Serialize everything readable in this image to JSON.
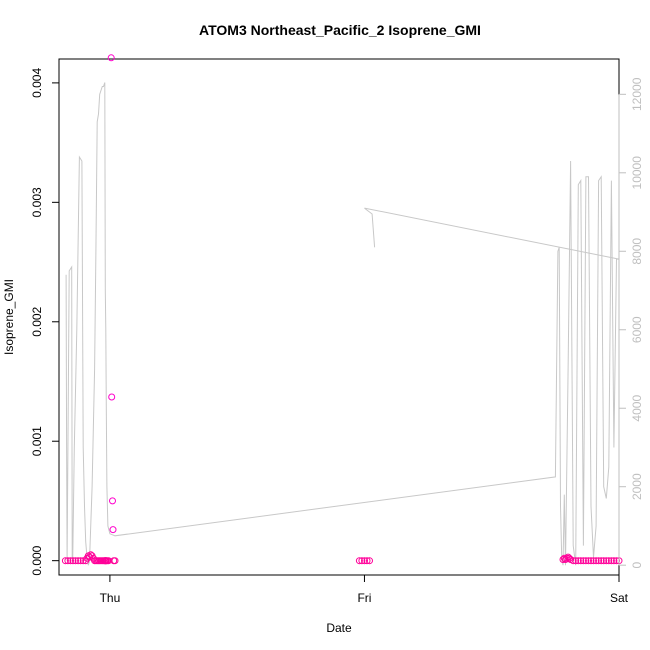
{
  "chart_data": {
    "type": "scatter",
    "title": "ATOM3 Northeast_Pacific_2 Isoprene_GMI",
    "xlabel": "Date",
    "ylabel": "Isoprene_GMI",
    "x_ticks": [
      "Thu",
      "Fri",
      "Sat"
    ],
    "xlim_days": [
      -0.2,
      2.0
    ],
    "ylim": [
      -0.00012,
      0.0042
    ],
    "y_ticks": [
      "0.000",
      "0.001",
      "0.002",
      "0.003",
      "0.004"
    ],
    "y_tick_values": [
      0,
      0.001,
      0.002,
      0.003,
      0.004
    ],
    "y2lim": [
      -250,
      12900
    ],
    "y2_ticks": [
      "0",
      "2000",
      "4000",
      "6000",
      "8000",
      "10000",
      "12000"
    ],
    "y2_tick_values": [
      0,
      2000,
      4000,
      6000,
      8000,
      10000,
      12000
    ],
    "colors": {
      "points": "#ff00cc",
      "points_dense": "#ff0099",
      "altitude_line": "#c8c8c8",
      "right_axis": "#bfbfbf"
    },
    "series": [
      {
        "role": "isoprene",
        "axis": "left",
        "style": "points",
        "x": [
          -0.175,
          -0.165,
          -0.155,
          -0.145,
          -0.135,
          -0.125,
          -0.115,
          -0.105,
          -0.095,
          -0.09,
          -0.085,
          -0.08,
          -0.075,
          -0.07,
          -0.065,
          -0.06,
          -0.055,
          -0.05,
          -0.045,
          -0.04,
          -0.035,
          -0.03,
          -0.025,
          -0.02,
          -0.015,
          -0.01,
          -0.005,
          -0.02,
          -0.018,
          -0.016,
          -0.014,
          0.005,
          0.007,
          0.01,
          0.012,
          0.015,
          0.02,
          0.98,
          0.99,
          1.0,
          1.01,
          1.02,
          1.78,
          1.785,
          1.79,
          1.795,
          1.8,
          1.805,
          1.81,
          1.82,
          1.83,
          1.84,
          1.85,
          1.86,
          1.87,
          1.88,
          1.89,
          1.9,
          1.91,
          1.92,
          1.93,
          1.94,
          1.95,
          1.96,
          1.97,
          1.98,
          1.99,
          2.0
        ],
        "y": [
          0,
          0,
          0,
          0,
          0,
          0,
          0,
          0,
          0,
          2e-05,
          4e-05,
          3e-05,
          5e-05,
          4e-05,
          2e-05,
          0,
          0,
          0,
          0,
          0,
          0,
          0,
          0,
          0,
          0,
          0,
          0,
          0,
          0,
          0,
          0,
          0.00421,
          0.00137,
          0.0005,
          0.00026,
          0,
          0,
          0,
          0,
          0,
          0,
          0,
          1e-05,
          2e-05,
          1e-05,
          2e-05,
          3e-05,
          2e-05,
          1e-05,
          0,
          0,
          0,
          0,
          0,
          0,
          0,
          0,
          0,
          0,
          0,
          0,
          0,
          0,
          0,
          0,
          0,
          0,
          0
        ]
      },
      {
        "role": "altitude",
        "axis": "right",
        "style": "line",
        "x": [
          -0.172,
          -0.17,
          -0.168,
          -0.16,
          -0.15,
          -0.148,
          -0.146,
          -0.14,
          -0.13,
          -0.12,
          -0.11,
          -0.105,
          -0.1,
          -0.095,
          -0.09,
          -0.085,
          -0.08,
          -0.07,
          -0.06,
          -0.055,
          -0.05,
          -0.045,
          -0.04,
          -0.035,
          -0.03,
          -0.025,
          -0.02,
          -0.018,
          -0.016,
          -0.014,
          -0.012,
          -0.01,
          -0.008,
          0.0,
          0.02,
          1.75,
          1.76,
          1.765,
          1.77,
          1.775,
          1.78,
          1.785,
          1.79,
          1.8,
          1.81,
          1.82,
          1.83,
          1.84,
          1.85,
          1.86,
          1.87,
          1.88,
          1.89,
          1.9,
          1.91,
          1.92,
          1.93,
          1.94,
          1.95,
          1.96,
          1.97,
          1.98,
          1.99,
          2.0,
          1.0,
          1.01,
          1.02,
          1.03,
          1.04
        ],
        "y": [
          7400,
          3000,
          100,
          7500,
          7600,
          200,
          100,
          3000,
          6000,
          10400,
          10300,
          3000,
          1500,
          600,
          200,
          0,
          100,
          2000,
          5000,
          8000,
          11300,
          11500,
          12000,
          12100,
          12200,
          12200,
          12300,
          7000,
          6000,
          4000,
          2000,
          1500,
          1000,
          800,
          750,
          2250,
          8000,
          8100,
          1500,
          200,
          0,
          1800,
          0,
          5000,
          10300,
          500,
          0,
          9700,
          9800,
          500,
          9900,
          9900,
          1500,
          200,
          1000,
          9800,
          9900,
          2000,
          1700,
          2500,
          9800,
          3000,
          7800,
          7800,
          9100,
          9050,
          9000,
          8950,
          8100
        ]
      }
    ]
  }
}
